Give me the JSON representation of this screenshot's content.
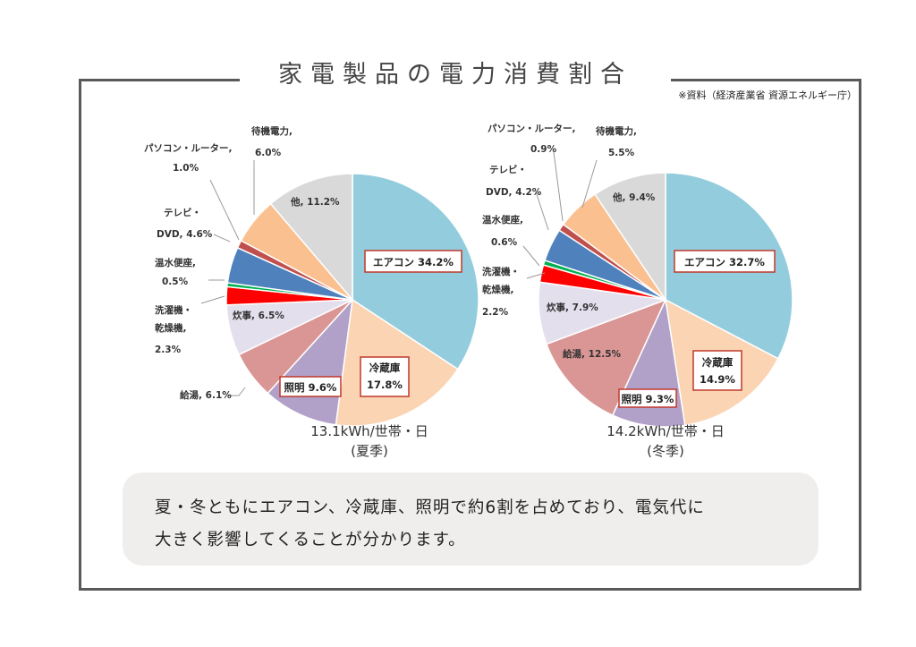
{
  "page": {
    "title": "家電製品の電力消費割合",
    "source": "※資料（経済産業省 資源エネルギー庁）",
    "summary_line1": "夏・冬ともにエアコン、冷蔵庫、照明で約6割を占めており、電気代に",
    "summary_line2": "大きく影響してくることが分かります。"
  },
  "chart_data": [
    {
      "type": "pie",
      "subtitle_line1": "13.1kWh/世帯・日",
      "subtitle_line2": "(夏季)",
      "slices": [
        {
          "name": "エアコン",
          "value": 34.2,
          "color": "#93cddd",
          "text": "エアコン 34.2%",
          "boxed": true
        },
        {
          "name": "冷蔵庫",
          "value": 17.8,
          "color": "#fbd4b4",
          "text1": "冷蔵庫",
          "text2": "17.8%",
          "boxed": true
        },
        {
          "name": "照明",
          "value": 9.6,
          "color": "#b1a0c7",
          "text": "照明 9.6%",
          "boxed": true
        },
        {
          "name": "給湯",
          "value": 6.1,
          "color": "#da9694",
          "text": "給湯, 6.1%"
        },
        {
          "name": "炊事",
          "value": 6.5,
          "color": "#e4dfec",
          "text": "炊事, 6.5%"
        },
        {
          "name": "洗濯機・乾燥機",
          "value": 2.3,
          "color": "#ff0000",
          "text1": "洗濯機・",
          "text2": "乾燥機,",
          "text3": "2.3%"
        },
        {
          "name": "温水便座",
          "value": 0.5,
          "color": "#00b050",
          "text1": "温水便座,",
          "text2": "0.5%"
        },
        {
          "name": "テレビ・DVD",
          "value": 4.6,
          "color": "#4f81bd",
          "text1": "テレビ・",
          "text2": "DVD, 4.6%"
        },
        {
          "name": "パソコン・ルーター",
          "value": 1.0,
          "color": "#c0504d",
          "text1": "パソコン・ルーター,",
          "text2": "1.0%"
        },
        {
          "name": "待機電力",
          "value": 6.0,
          "color": "#fac090",
          "text1": "待機電力,",
          "text2": "6.0%"
        },
        {
          "name": "他",
          "value": 11.2,
          "color": "#d9d9d9",
          "text": "他, 11.2%"
        }
      ]
    },
    {
      "type": "pie",
      "subtitle_line1": "14.2kWh/世帯・日",
      "subtitle_line2": "(冬季)",
      "slices": [
        {
          "name": "エアコン",
          "value": 32.7,
          "color": "#93cddd",
          "text": "エアコン 32.7%",
          "boxed": true
        },
        {
          "name": "冷蔵庫",
          "value": 14.9,
          "color": "#fbd4b4",
          "text1": "冷蔵庫",
          "text2": "14.9%",
          "boxed": true
        },
        {
          "name": "照明",
          "value": 9.3,
          "color": "#b1a0c7",
          "text": "照明 9.3%",
          "boxed": true
        },
        {
          "name": "給湯",
          "value": 12.5,
          "color": "#da9694",
          "text": "給湯, 12.5%"
        },
        {
          "name": "炊事",
          "value": 7.9,
          "color": "#e4dfec",
          "text": "炊事, 7.9%"
        },
        {
          "name": "洗濯機・乾燥機",
          "value": 2.2,
          "color": "#ff0000",
          "text1": "洗濯機・",
          "text2": "乾燥機,",
          "text3": "2.2%"
        },
        {
          "name": "温水便座",
          "value": 0.6,
          "color": "#00b050",
          "text1": "温水便座,",
          "text2": "0.6%"
        },
        {
          "name": "テレビ・DVD",
          "value": 4.2,
          "color": "#4f81bd",
          "text1": "テレビ・",
          "text2": "DVD, 4.2%"
        },
        {
          "name": "パソコン・ルーター",
          "value": 0.9,
          "color": "#c0504d",
          "text1": "パソコン・ルーター,",
          "text2": "0.9%"
        },
        {
          "name": "待機電力",
          "value": 5.5,
          "color": "#fac090",
          "text1": "待機電力,",
          "text2": "5.5%"
        },
        {
          "name": "他",
          "value": 9.4,
          "color": "#d9d9d9",
          "text": "他, 9.4%"
        }
      ]
    }
  ]
}
